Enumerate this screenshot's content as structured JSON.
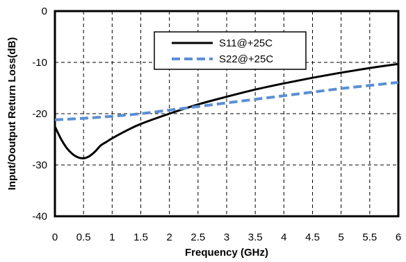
{
  "chart_data": {
    "type": "line",
    "title": "",
    "xlabel": "Frequency (GHz)",
    "ylabel": "Input/Ooutput Return Loss(dB)",
    "xlim": [
      0,
      6
    ],
    "ylim": [
      -40,
      0
    ],
    "xticks": [
      "0",
      "0.5",
      "1",
      "1.5",
      "2",
      "2.5",
      "3",
      "3.5",
      "4",
      "4.5",
      "5",
      "5.5",
      "6"
    ],
    "yticks": [
      "0",
      "-10",
      "-20",
      "-30",
      "-40"
    ],
    "grid": true,
    "legend_position": "top-right",
    "series": [
      {
        "name": "S11@+25C",
        "color": "#000000",
        "style": "solid",
        "x": [
          0,
          0.1,
          0.2,
          0.3,
          0.4,
          0.5,
          0.6,
          0.7,
          0.8,
          0.9,
          1.0,
          1.25,
          1.5,
          2.0,
          2.5,
          3.0,
          3.5,
          4.0,
          4.5,
          5.0,
          5.5,
          6.0
        ],
        "y": [
          -22.5,
          -24.8,
          -26.6,
          -27.8,
          -28.5,
          -28.7,
          -28.3,
          -27.4,
          -26.2,
          -25.5,
          -24.8,
          -23.3,
          -22.0,
          -20.0,
          -18.2,
          -16.7,
          -15.3,
          -14.1,
          -13.0,
          -12.0,
          -11.1,
          -10.3
        ]
      },
      {
        "name": "S22@+25C",
        "color": "#5b8fd4",
        "style": "dashed",
        "x": [
          0,
          0.5,
          1.0,
          1.5,
          2.0,
          2.5,
          3.0,
          3.5,
          4.0,
          4.5,
          5.0,
          5.5,
          6.0
        ],
        "y": [
          -21.2,
          -20.9,
          -20.5,
          -20.0,
          -19.3,
          -18.6,
          -17.9,
          -17.2,
          -16.5,
          -15.8,
          -15.1,
          -14.5,
          -13.9
        ]
      }
    ]
  }
}
